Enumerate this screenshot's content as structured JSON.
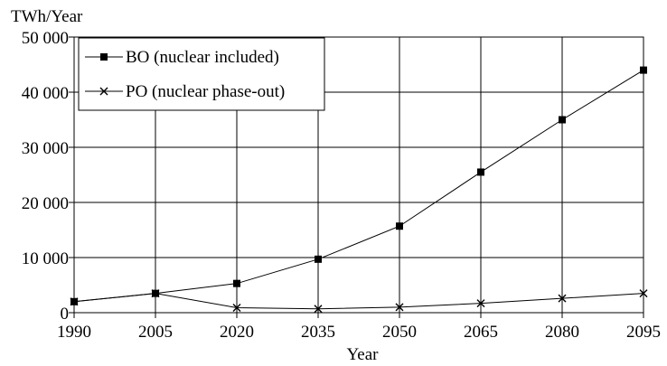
{
  "chart_data": {
    "type": "line",
    "x": [
      1990,
      2005,
      2020,
      2035,
      2050,
      2065,
      2080,
      2095
    ],
    "xlabel": "Year",
    "ylabel": "TWh/Year",
    "xlim": [
      1990,
      2095
    ],
    "ylim": [
      0,
      50000
    ],
    "yticks": [
      0,
      10000,
      20000,
      30000,
      40000,
      50000
    ],
    "ytick_labels": [
      "0",
      "10 000",
      "20 000",
      "30 000",
      "40 000",
      "50 000"
    ],
    "xtick_labels": [
      "1990",
      "2005",
      "2020",
      "2035",
      "2050",
      "2065",
      "2080",
      "2095"
    ],
    "grid": true,
    "legend_position": "top-left",
    "series": [
      {
        "name": "BO (nuclear included)",
        "marker": "square",
        "values": [
          2000,
          3500,
          5300,
          9700,
          15700,
          25500,
          35000,
          44000
        ]
      },
      {
        "name": "PO (nuclear phase-out)",
        "marker": "x",
        "values": [
          2000,
          3500,
          900,
          700,
          1000,
          1700,
          2600,
          3500
        ]
      }
    ],
    "colors": {
      "line": "#000000",
      "grid": "#000000"
    }
  }
}
